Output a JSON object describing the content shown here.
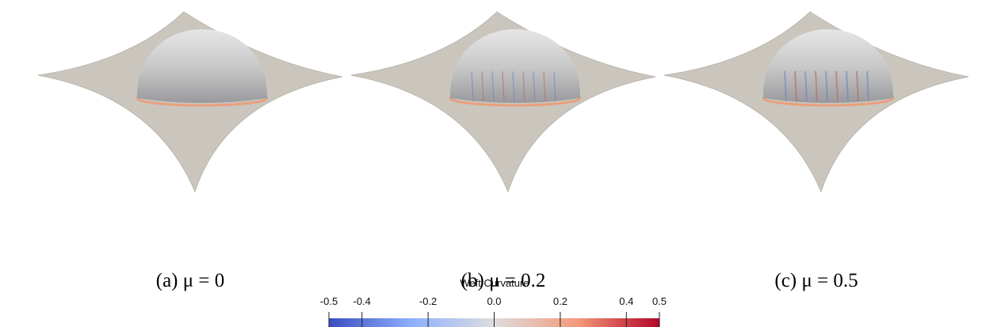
{
  "panels": [
    {
      "caption": "(a) μ = 0"
    },
    {
      "caption": "(b) μ = 0.2"
    },
    {
      "caption": "(c) μ = 0.5"
    }
  ],
  "colorbar": {
    "title": "Weft Curvature",
    "range": [
      -0.5,
      0.5
    ],
    "ticks": [
      -0.5,
      -0.4,
      -0.2,
      {
        "value": 0,
        "label": "0.0"
      },
      0.2,
      0.4,
      0.5
    ]
  }
}
